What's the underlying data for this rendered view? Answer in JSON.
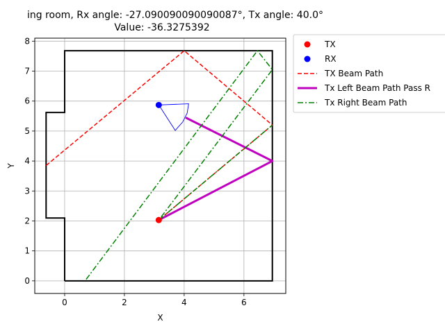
{
  "chart_data": {
    "type": "line",
    "title_line1": "ing room, Rx angle: -27.090090090090087°, Tx angle: 40.0°",
    "title_line2": "Value: -36.3275392",
    "xlabel": "X",
    "ylabel": "Y",
    "xlim": [
      -1.0,
      7.4
    ],
    "ylim": [
      -0.42,
      8.1
    ],
    "x_ticks": [
      0,
      2,
      4,
      6
    ],
    "y_ticks": [
      0,
      1,
      2,
      3,
      4,
      5,
      6,
      7,
      8
    ],
    "grid": true,
    "legend_position": "outside upper right",
    "room_outline": {
      "color": "#000000",
      "points": [
        [
          0,
          0
        ],
        [
          6.95,
          0
        ],
        [
          6.95,
          7.68
        ],
        [
          0,
          7.68
        ],
        [
          0,
          5.62
        ],
        [
          -0.62,
          5.62
        ],
        [
          -0.62,
          2.1
        ],
        [
          0,
          2.1
        ],
        [
          0,
          0
        ]
      ]
    },
    "tx": {
      "label": "TX",
      "color": "#ff0000",
      "point": [
        3.15,
        2.03
      ]
    },
    "rx": {
      "label": "RX",
      "color": "#0000ff",
      "point": [
        3.15,
        5.87
      ],
      "sector": [
        [
          3.15,
          5.87
        ],
        [
          3.7,
          5.02
        ],
        [
          3.95,
          5.3
        ],
        [
          4.1,
          5.6
        ],
        [
          4.15,
          5.91
        ],
        [
          3.15,
          5.87
        ]
      ]
    },
    "series": [
      {
        "name": "TX Beam Path",
        "color": "#ff0000",
        "style": "dashed",
        "width": 1.5,
        "points": [
          [
            -0.62,
            3.85
          ],
          [
            4.0,
            7.68
          ],
          [
            6.95,
            5.2
          ],
          [
            3.15,
            2.03
          ]
        ]
      },
      {
        "name": "Tx Left Beam Path Pass R",
        "color": "#bf00bf",
        "style": "solid",
        "width": 3,
        "points": [
          [
            3.15,
            2.03
          ],
          [
            6.95,
            4.0
          ],
          [
            4.05,
            5.45
          ]
        ]
      },
      {
        "name": "Tx Right Beam Path",
        "color": "#008000",
        "style": "dashdot",
        "width": 1.5,
        "segments": [
          [
            [
              0.72,
              0.05
            ],
            [
              6.45,
              7.68
            ],
            [
              6.95,
              7.05
            ],
            [
              3.15,
              2.03
            ]
          ],
          [
            [
              3.15,
              2.03
            ],
            [
              6.95,
              5.2
            ]
          ]
        ]
      }
    ]
  }
}
